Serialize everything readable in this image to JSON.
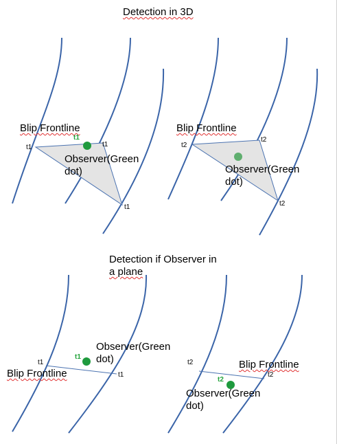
{
  "titles": {
    "top": "Detection in 3D",
    "bottom_line1": "Detection if Observer in",
    "bottom_line2": "a plane"
  },
  "panel_3d_left": {
    "frontline_label": "Blip Frontline",
    "observer_line1": "Observer(Green",
    "observer_line2": "dot)",
    "time_left": "t1",
    "time_top_right": "t1",
    "time_bottom": "t1",
    "time_dot": "t1"
  },
  "panel_3d_right": {
    "frontline_label": "Blip Frontline",
    "observer_line1": "Observer(Green",
    "observer_line2": "dot)",
    "time_left": "t2",
    "time_top_right": "t2",
    "time_bottom": "t2"
  },
  "panel_plane_left": {
    "frontline_label": "Blip Frontline",
    "observer_line1": "Observer(Green",
    "observer_line2": "dot)",
    "time_left": "t1",
    "time_right": "t1",
    "time_dot": "t1"
  },
  "panel_plane_right": {
    "frontline_label": "Blip Frontline",
    "observer_line1": "Observer(Green",
    "observer_line2": "dot)",
    "time_left": "t2",
    "time_right": "t2",
    "time_dot": "t2"
  },
  "colors": {
    "curve": "#3a64a8",
    "triangle_edge": "#4a72b0",
    "triangle_fill": "#e4e4e4",
    "observer_dot": "#1f9a3e",
    "observer_dot_faded": "#5fae6e",
    "time_label_green": "#22a33a"
  }
}
